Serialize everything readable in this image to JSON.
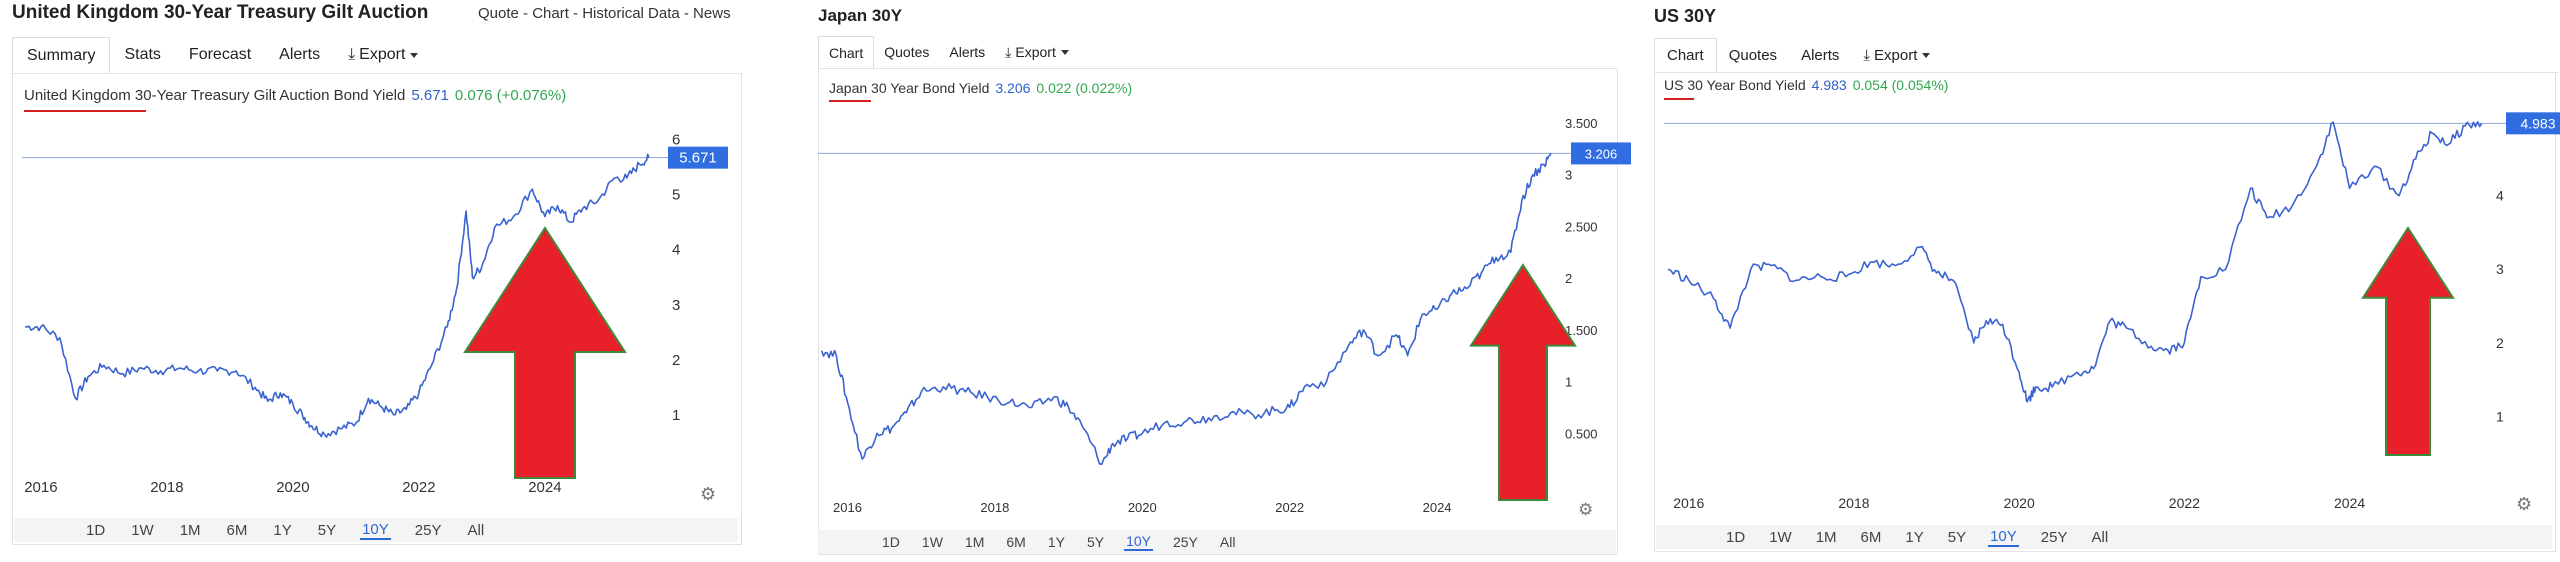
{
  "panels": [
    {
      "title": "United Kingdom 30-Year Treasury Gilt Auction",
      "header_links": "Quote - Chart - Historical Data - News",
      "tabs": [
        "Summary",
        "Stats",
        "Forecast",
        "Alerts",
        "Export"
      ],
      "active_tab": 0,
      "legend": {
        "name": "United Kingdom 30-Year Treasury Gilt Auction Bond Yield",
        "value": "5.671",
        "change": "0.076 (+0.076%)"
      },
      "current_label": "5.671",
      "ranges": [
        "1D",
        "1W",
        "1M",
        "6M",
        "1Y",
        "5Y",
        "10Y",
        "25Y",
        "All"
      ],
      "active_range": "10Y",
      "annotation": "red-up-arrow",
      "settings_icon": "gear-icon",
      "chart_data": {
        "type": "line",
        "x_ticks": [
          "2016",
          "2018",
          "2020",
          "2022",
          "2024"
        ],
        "y_ticks": [
          "1",
          "2",
          "3",
          "4",
          "5",
          "6"
        ],
        "xlim": [
          2015.7,
          2025.7
        ],
        "ylim": [
          0,
          6.5
        ],
        "x": [
          2015.75,
          2016.0,
          2016.3,
          2016.55,
          2016.75,
          2017.0,
          2017.3,
          2017.6,
          2017.9,
          2018.2,
          2018.5,
          2018.8,
          2019.1,
          2019.4,
          2019.6,
          2019.8,
          2020.0,
          2020.15,
          2020.3,
          2020.5,
          2020.75,
          2021.0,
          2021.2,
          2021.4,
          2021.6,
          2021.8,
          2022.0,
          2022.2,
          2022.45,
          2022.6,
          2022.75,
          2022.85,
          2023.0,
          2023.2,
          2023.5,
          2023.8,
          2024.0,
          2024.2,
          2024.4,
          2024.6,
          2024.85,
          2025.1,
          2025.3,
          2025.5,
          2025.65
        ],
        "y": [
          2.6,
          2.6,
          2.4,
          1.3,
          1.7,
          1.9,
          1.75,
          1.85,
          1.8,
          1.85,
          1.8,
          1.8,
          1.8,
          1.5,
          1.25,
          1.4,
          1.2,
          1.0,
          0.8,
          0.65,
          0.75,
          0.85,
          1.3,
          1.15,
          1.0,
          1.1,
          1.4,
          1.9,
          2.6,
          3.3,
          4.7,
          3.5,
          3.7,
          4.4,
          4.6,
          5.1,
          4.6,
          4.8,
          4.5,
          4.75,
          4.9,
          5.3,
          5.3,
          5.55,
          5.67
        ],
        "current_value": 5.671
      }
    },
    {
      "title": "Japan 30Y",
      "tabs": [
        "Chart",
        "Quotes",
        "Alerts",
        "Export"
      ],
      "active_tab": 0,
      "legend": {
        "name": "Japan 30 Year Bond Yield",
        "value": "3.206",
        "change": "0.022 (0.022%)"
      },
      "current_label": "3.206",
      "ranges": [
        "1D",
        "1W",
        "1M",
        "6M",
        "1Y",
        "5Y",
        "10Y",
        "25Y",
        "All"
      ],
      "active_range": "10Y",
      "annotation": "red-up-arrow",
      "settings_icon": "gear-icon",
      "chart_data": {
        "type": "line",
        "x_ticks": [
          "2016",
          "2018",
          "2020",
          "2022",
          "2024"
        ],
        "y_ticks": [
          "0.500",
          "1",
          "1.500",
          "2",
          "2.500",
          "3",
          "3.500"
        ],
        "xlim": [
          2015.6,
          2025.6
        ],
        "ylim": [
          0,
          3.8
        ],
        "x": [
          2015.65,
          2015.85,
          2016.0,
          2016.2,
          2016.4,
          2016.6,
          2016.8,
          2017.0,
          2017.3,
          2017.6,
          2017.9,
          2018.2,
          2018.5,
          2018.8,
          2019.0,
          2019.2,
          2019.45,
          2019.6,
          2019.8,
          2020.0,
          2020.3,
          2020.6,
          2020.9,
          2021.2,
          2021.5,
          2021.8,
          2022.0,
          2022.2,
          2022.5,
          2022.8,
          2023.0,
          2023.2,
          2023.45,
          2023.6,
          2023.8,
          2024.0,
          2024.2,
          2024.4,
          2024.6,
          2024.8,
          2025.0,
          2025.15,
          2025.3,
          2025.45,
          2025.55
        ],
        "y": [
          1.3,
          1.25,
          0.8,
          0.25,
          0.5,
          0.55,
          0.7,
          0.9,
          0.95,
          0.9,
          0.85,
          0.8,
          0.75,
          0.85,
          0.75,
          0.55,
          0.2,
          0.4,
          0.45,
          0.5,
          0.6,
          0.62,
          0.65,
          0.7,
          0.68,
          0.72,
          0.75,
          0.95,
          1.0,
          1.35,
          1.5,
          1.25,
          1.45,
          1.25,
          1.65,
          1.7,
          1.85,
          1.9,
          2.05,
          2.2,
          2.25,
          2.75,
          3.0,
          3.1,
          3.206
        ],
        "current_value": 3.206
      }
    },
    {
      "title": "US 30Y",
      "tabs": [
        "Chart",
        "Quotes",
        "Alerts",
        "Export"
      ],
      "active_tab": 0,
      "legend": {
        "name": "US 30 Year Bond Yield",
        "value": "4.983",
        "change": "0.054 (0.054%)"
      },
      "current_label": "4.983",
      "ranges": [
        "1D",
        "1W",
        "1M",
        "6M",
        "1Y",
        "5Y",
        "10Y",
        "25Y",
        "All"
      ],
      "active_range": "10Y",
      "annotation": "red-up-arrow",
      "settings_icon": "gear-icon",
      "chart_data": {
        "type": "line",
        "x_ticks": [
          "2016",
          "2018",
          "2020",
          "2022",
          "2024"
        ],
        "y_ticks": [
          "1",
          "2",
          "3",
          "4"
        ],
        "xlim": [
          2015.7,
          2025.7
        ],
        "ylim": [
          0,
          5.3
        ],
        "x": [
          2015.75,
          2016.0,
          2016.3,
          2016.5,
          2016.75,
          2017.0,
          2017.3,
          2017.6,
          2017.9,
          2018.2,
          2018.5,
          2018.8,
          2019.0,
          2019.2,
          2019.45,
          2019.6,
          2019.8,
          2020.0,
          2020.1,
          2020.2,
          2020.4,
          2020.7,
          2020.9,
          2021.1,
          2021.3,
          2021.6,
          2021.8,
          2022.0,
          2022.2,
          2022.5,
          2022.8,
          2023.0,
          2023.3,
          2023.6,
          2023.8,
          2024.0,
          2024.3,
          2024.6,
          2024.8,
          2025.0,
          2025.2,
          2025.4,
          2025.6
        ],
        "y": [
          3.0,
          2.85,
          2.6,
          2.2,
          3.0,
          3.05,
          2.85,
          2.9,
          2.9,
          3.1,
          3.05,
          3.3,
          2.95,
          2.85,
          2.0,
          2.3,
          2.25,
          1.6,
          1.2,
          1.4,
          1.4,
          1.6,
          1.65,
          2.3,
          2.2,
          1.95,
          1.9,
          2.0,
          2.9,
          3.0,
          4.1,
          3.7,
          3.85,
          4.4,
          5.0,
          4.1,
          4.4,
          4.0,
          4.5,
          4.85,
          4.7,
          4.95,
          4.983
        ],
        "current_value": 4.983
      }
    }
  ]
}
